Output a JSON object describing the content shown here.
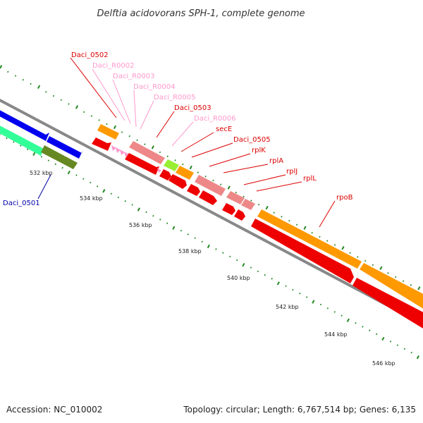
{
  "title": "Delftia acidovorans SPH-1, complete genome",
  "footer": {
    "accession": "Accession: NC_010002",
    "topology": "Topology: circular; Length: 6,767,514 bp; Genes: 6,135"
  },
  "scale_labels": [
    "532 kbp",
    "534 kbp",
    "536 kbp",
    "538 kbp",
    "540 kbp",
    "542 kbp",
    "544 kbp",
    "546 kbp"
  ],
  "gene_labels": [
    {
      "text": "Daci_0502",
      "color": "#dd0000"
    },
    {
      "text": "Daci_R0002",
      "color": "#ff99cc"
    },
    {
      "text": "Daci_R0003",
      "color": "#ff99cc"
    },
    {
      "text": "Daci_R0004",
      "color": "#ff99cc"
    },
    {
      "text": "Daci_R0005",
      "color": "#ff99cc"
    },
    {
      "text": "Daci_0503",
      "color": "#dd0000"
    },
    {
      "text": "Daci_R0006",
      "color": "#ff99cc"
    },
    {
      "text": "secE",
      "color": "#dd0000"
    },
    {
      "text": "Daci_0505",
      "color": "#dd0000"
    },
    {
      "text": "rplK",
      "color": "#dd0000"
    },
    {
      "text": "rplA",
      "color": "#dd0000"
    },
    {
      "text": "rplJ",
      "color": "#dd0000"
    },
    {
      "text": "rplL",
      "color": "#dd0000"
    },
    {
      "text": "rpoB",
      "color": "#dd0000"
    },
    {
      "text": "Daci_0501",
      "color": "#0000aa"
    }
  ],
  "colors": {
    "cds": "#ee0000",
    "rna": "#ff99cc",
    "cog_orange": "#ff9900",
    "cog_salmon": "#ee8888",
    "cog_lime": "#99ee33",
    "cog_blue": "#0000ee",
    "cog_aqua": "#33ff99",
    "cog_olive": "#668822",
    "backbone": "#888888",
    "scale": "#228822"
  }
}
